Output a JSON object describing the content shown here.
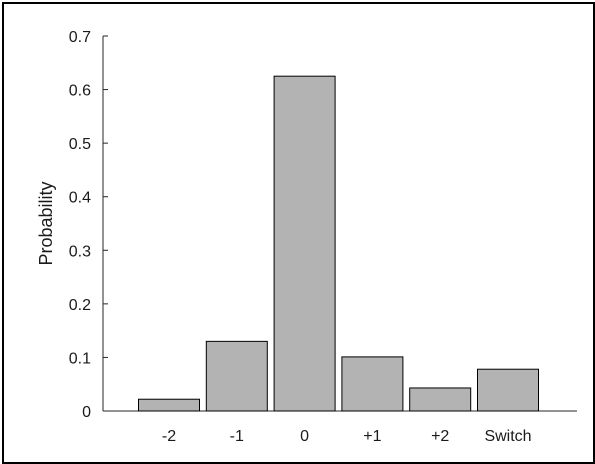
{
  "chart_data": {
    "type": "bar",
    "categories": [
      "-2",
      "-1",
      "0",
      "+1",
      "+2",
      "Switch"
    ],
    "values": [
      0.022,
      0.13,
      0.625,
      0.101,
      0.043,
      0.078
    ],
    "ylabel": "Probability",
    "xlabel": "",
    "title": "",
    "ylim": [
      0,
      0.7
    ],
    "yticks": [
      0,
      0.1,
      0.2,
      0.3,
      0.4,
      0.5,
      0.6,
      0.7
    ],
    "ytick_labels": [
      "0",
      "0.1",
      "0.2",
      "0.3",
      "0.4",
      "0.5",
      "0.6",
      "0.7"
    ],
    "grid": false,
    "legend": "none",
    "bar_color": "#b3b3b3",
    "bar_edge_color": "#000000"
  }
}
